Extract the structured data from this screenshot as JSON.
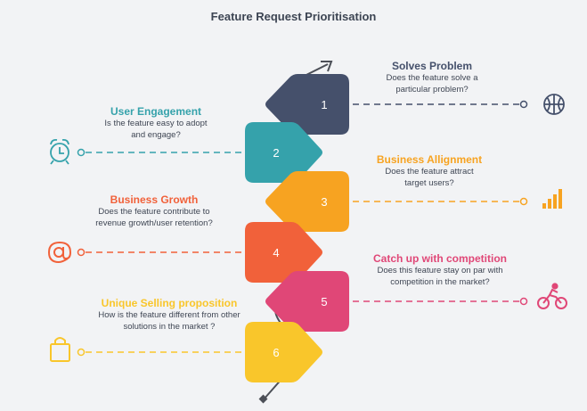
{
  "title": "Feature Request Prioritisation",
  "colors": {
    "slate": "#45506b",
    "teal": "#35a2ab",
    "orange": "#f7a321",
    "coral": "#f1613a",
    "pink": "#e04777",
    "yellow": "#f9c62b",
    "line": "#4c4f57"
  },
  "steps": [
    {
      "number": "1",
      "heading": "Solves Problem",
      "line1": "Does the feature solve a",
      "line2": "particular problem?",
      "icon": "basketball-icon",
      "color": "#45506b"
    },
    {
      "number": "2",
      "heading": "User Engagement",
      "line1": "Is the feature easy to adopt",
      "line2": "and engage?",
      "icon": "alarm-clock-icon",
      "color": "#35a2ab"
    },
    {
      "number": "3",
      "heading": "Business Allignment",
      "line1": "Does the feature attract",
      "line2": "target users?",
      "icon": "signal-bars-icon",
      "color": "#f7a321"
    },
    {
      "number": "4",
      "heading": "Business Growth",
      "line1": "Does the feature contribute to",
      "line2": "revenue growth/user retention?",
      "icon": "at-sign-icon",
      "color": "#f1613a"
    },
    {
      "number": "5",
      "heading": "Catch up with competition",
      "line1": "Does this feature stay on par with",
      "line2": "competition in the market?",
      "icon": "cyclist-icon",
      "color": "#e04777"
    },
    {
      "number": "6",
      "heading": "Unique Selling proposition",
      "line1": "How is  the feature different from other",
      "line2": "solutions in the market ?",
      "icon": "shopping-bag-icon",
      "color": "#f9c62b"
    }
  ]
}
